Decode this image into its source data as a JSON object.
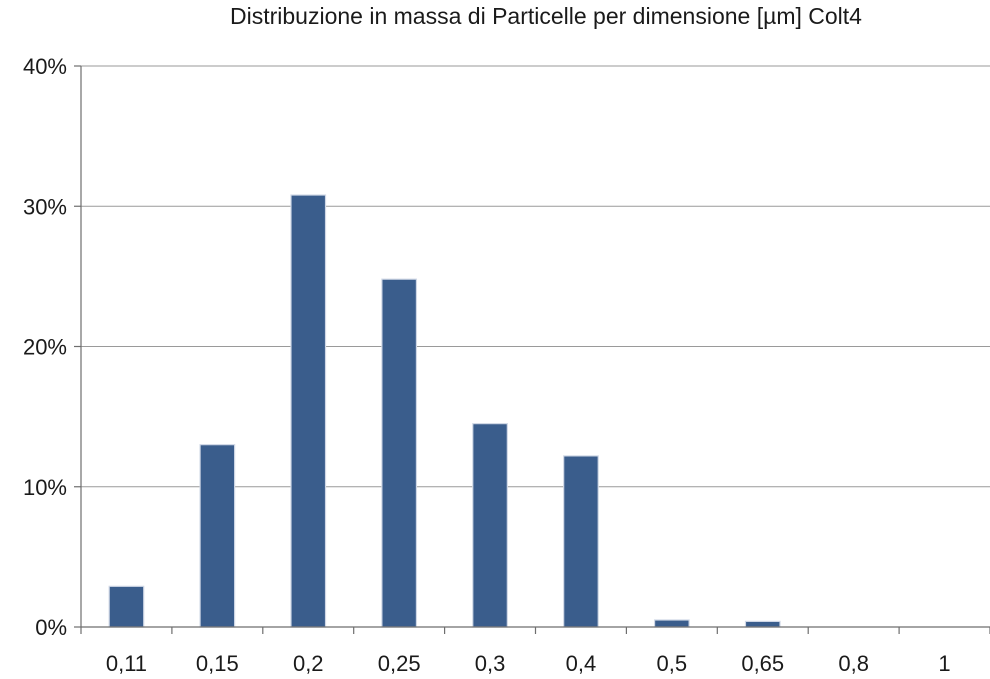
{
  "chart_data": {
    "type": "bar",
    "title": "Distribuzione in massa di Particelle per dimensione [µm] Colt4",
    "xlabel": "",
    "ylabel": "",
    "categories": [
      "0,11",
      "0,15",
      "0,2",
      "0,25",
      "0,3",
      "0,4",
      "0,5",
      "0,65",
      "0,8",
      "1"
    ],
    "values": [
      2.9,
      13.0,
      30.8,
      24.8,
      14.5,
      12.2,
      0.5,
      0.4,
      0.0,
      0.0
    ],
    "ylim": [
      0,
      40
    ],
    "yticks": [
      0,
      10,
      20,
      30,
      40
    ],
    "ytick_labels": [
      "0%",
      "10%",
      "20%",
      "30%",
      "40%"
    ],
    "grid": true,
    "legend": "none",
    "bar_color": "#3a5d8c"
  }
}
